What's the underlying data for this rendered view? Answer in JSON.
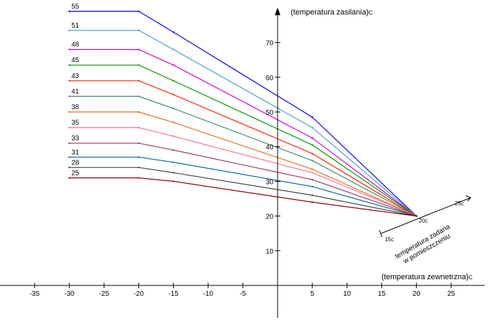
{
  "chart_data": {
    "type": "line",
    "x_axis_label": "(temperatura zewnetrzna)",
    "x_axis_unit": "C",
    "y_axis_label": "(temperatura zasilania)",
    "y_axis_unit": "C",
    "x_ticks": [
      -35,
      -30,
      -25,
      -20,
      -15,
      -10,
      -5,
      5,
      10,
      15,
      20,
      25
    ],
    "y_ticks": [
      10,
      20,
      30,
      40,
      50,
      60,
      70
    ],
    "xlim": [
      -40,
      30
    ],
    "ylim": [
      -5,
      80
    ],
    "grid": false,
    "series": [
      {
        "name": "55",
        "color": "#0000ff",
        "points": [
          [
            -30,
            79
          ],
          [
            -20,
            79
          ],
          [
            -15,
            73
          ],
          [
            5,
            48.5
          ],
          [
            20,
            20
          ]
        ]
      },
      {
        "name": "51",
        "color": "#4a9fc8",
        "points": [
          [
            -30,
            73.5
          ],
          [
            -20,
            73.5
          ],
          [
            -15,
            68
          ],
          [
            5,
            45.5
          ],
          [
            20,
            20
          ]
        ]
      },
      {
        "name": "48",
        "color": "#cc00cc",
        "points": [
          [
            -30,
            68
          ],
          [
            -20,
            68
          ],
          [
            -15,
            63.5
          ],
          [
            5,
            42.5
          ],
          [
            20,
            20
          ]
        ]
      },
      {
        "name": "45",
        "color": "#009900",
        "points": [
          [
            -30,
            63.5
          ],
          [
            -20,
            63.5
          ],
          [
            -15,
            59
          ],
          [
            5,
            40.5
          ],
          [
            20,
            20
          ]
        ]
      },
      {
        "name": "43",
        "color": "#ff2200",
        "points": [
          [
            -30,
            59
          ],
          [
            -20,
            59
          ],
          [
            -15,
            55
          ],
          [
            5,
            38
          ],
          [
            20,
            20
          ]
        ]
      },
      {
        "name": "41",
        "color": "#3d8a6e",
        "points": [
          [
            -30,
            54.5
          ],
          [
            -20,
            54.5
          ],
          [
            -15,
            51
          ],
          [
            5,
            36
          ],
          [
            20,
            20
          ]
        ]
      },
      {
        "name": "38",
        "color": "#e07020",
        "points": [
          [
            -30,
            50
          ],
          [
            -20,
            50
          ],
          [
            -15,
            47
          ],
          [
            5,
            33.5
          ],
          [
            20,
            20
          ]
        ]
      },
      {
        "name": "35",
        "color": "#ff6f8a",
        "points": [
          [
            -30,
            45.5
          ],
          [
            -20,
            45.5
          ],
          [
            -15,
            43
          ],
          [
            5,
            32.5
          ],
          [
            20,
            20
          ]
        ]
      },
      {
        "name": "33",
        "color": "#993366",
        "points": [
          [
            -30,
            41
          ],
          [
            -20,
            41
          ],
          [
            -15,
            39
          ],
          [
            5,
            30.5
          ],
          [
            20,
            20
          ]
        ]
      },
      {
        "name": "31",
        "color": "#006699",
        "points": [
          [
            -30,
            37
          ],
          [
            -20,
            37
          ],
          [
            -15,
            35.5
          ],
          [
            5,
            28.5
          ],
          [
            20,
            20
          ]
        ]
      },
      {
        "name": "28",
        "color": "#444444",
        "points": [
          [
            -30,
            34
          ],
          [
            -20,
            34
          ],
          [
            -15,
            32.5
          ],
          [
            5,
            26
          ],
          [
            20,
            20
          ]
        ]
      },
      {
        "name": "25",
        "color": "#8b0000",
        "points": [
          [
            -30,
            31
          ],
          [
            -20,
            31
          ],
          [
            -15,
            30
          ],
          [
            5,
            24
          ],
          [
            20,
            20
          ]
        ]
      }
    ],
    "room_temperature_axis": {
      "label_line1": "temperatura zadana",
      "label_line2": "w pomieszczeniu",
      "start_label": "15",
      "mid_label": "20",
      "end_label": "25",
      "unit": "C"
    }
  }
}
